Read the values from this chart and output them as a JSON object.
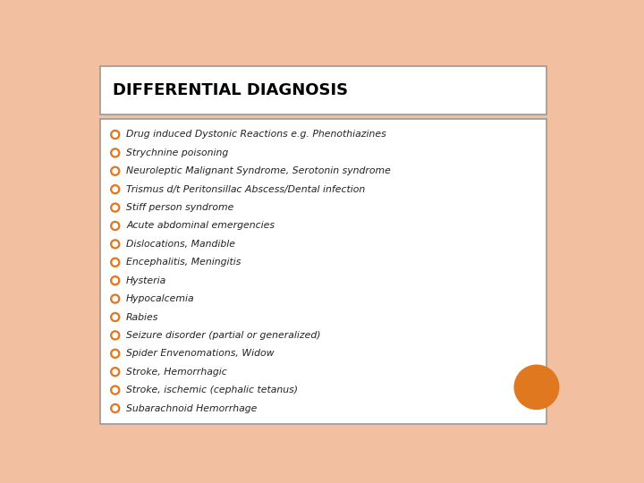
{
  "title": "DIFFERENTIAL DIAGNOSIS",
  "items": [
    "Drug induced Dystonic Reactions e.g. Phenothiazines",
    "Strychnine poisoning",
    "Neuroleptic Malignant Syndrome, Serotonin syndrome",
    "Trismus d/t Peritonsillac Abscess/Dental infection",
    "Stiff person syndrome",
    "Acute abdominal emergencies",
    "Dislocations, Mandible",
    "Encephalitis, Meningitis",
    "Hysteria",
    "Hypocalcemia",
    "Rabies",
    "Seizure disorder (partial or generalized)",
    "Spider Envenomations, Widow",
    "Stroke, Hemorrhagic",
    "Stroke, ischemic (cephalic tetanus)",
    "Subarachnoid Hemorrhage"
  ],
  "background_color": "#f2bfa0",
  "title_box_color": "#ffffff",
  "list_box_color": "#ffffff",
  "title_color": "#000000",
  "item_color": "#222222",
  "bullet_color": "#e07820",
  "bullet_inner_color": "#ffffff",
  "orange_circle_color": "#e07820",
  "title_fontsize": 13,
  "item_fontsize": 7.8
}
